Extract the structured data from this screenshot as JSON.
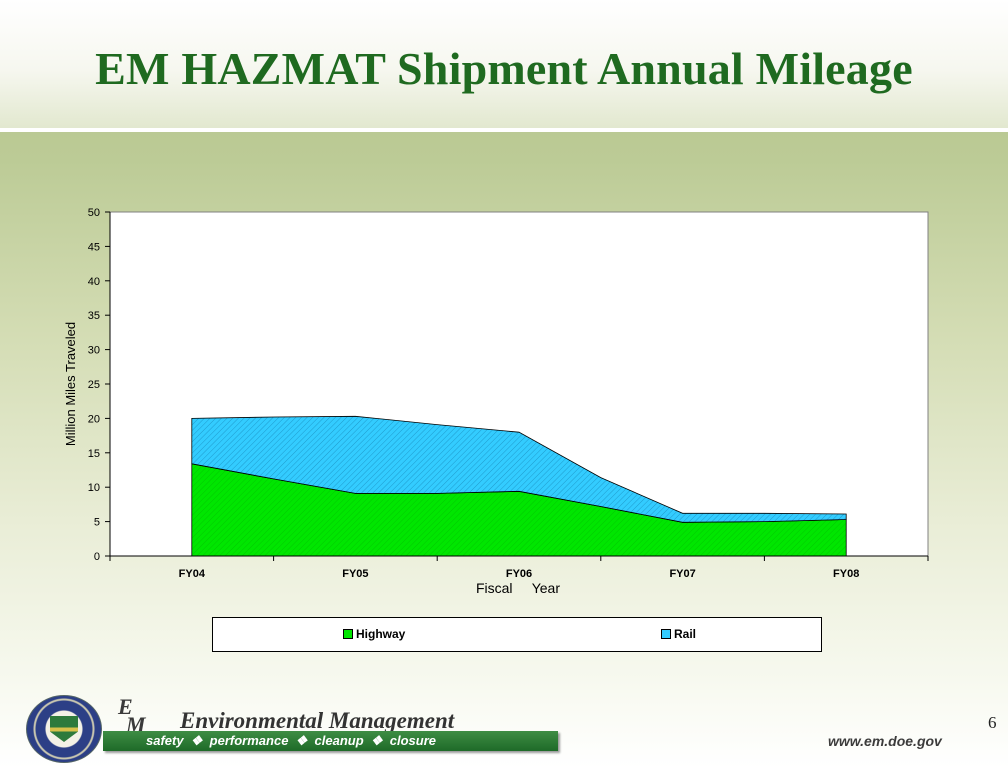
{
  "slide": {
    "title": "EM HAZMAT Shipment Annual Mileage",
    "page_number": "6"
  },
  "footer": {
    "logo_letters": [
      "E",
      "M"
    ],
    "org_name": "Environmental Management",
    "tagline": "safety  ❖  performance  ❖  cleanup  ❖  closure",
    "url": "www.em.doe.gov"
  },
  "colors": {
    "title": "#1f6a20",
    "highway": "#00e600",
    "rail": "#33ccff"
  },
  "chart_data": {
    "type": "area",
    "stacked": true,
    "title": "",
    "xlabel": "Fiscal     Year",
    "ylabel": "Million Miles Traveled",
    "ylim": [
      0,
      50
    ],
    "yticks": [
      0,
      5,
      10,
      15,
      20,
      25,
      30,
      35,
      40,
      45,
      50
    ],
    "categories": [
      "FY04",
      "FY05",
      "FY06",
      "FY07",
      "FY08"
    ],
    "x": [
      0,
      0.5,
      1,
      1.5,
      2,
      2.5,
      3,
      3.5,
      4
    ],
    "series": [
      {
        "name": "Highway",
        "color": "#00e600",
        "values": [
          13.4,
          11.2,
          9.1,
          9.1,
          9.4,
          7.2,
          4.9,
          5.0,
          5.3
        ]
      },
      {
        "name": "Rail",
        "color": "#33ccff",
        "values": [
          6.6,
          9.0,
          11.2,
          10.0,
          8.6,
          4.2,
          1.3,
          1.2,
          0.8
        ]
      }
    ],
    "legend_position": "bottom",
    "grid": false
  }
}
